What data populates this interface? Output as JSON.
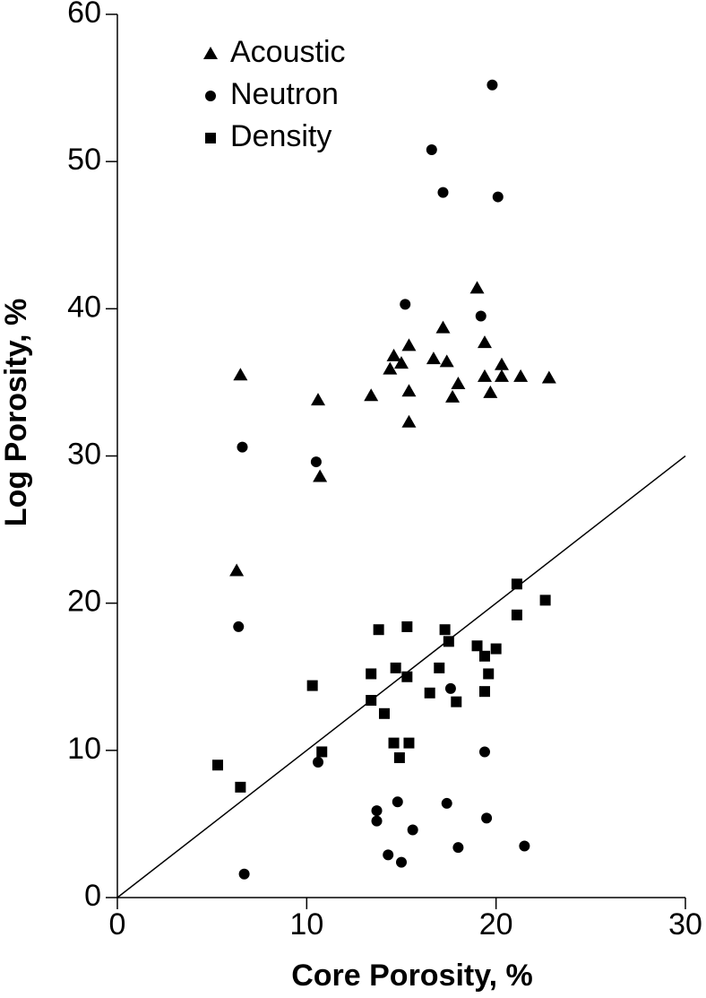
{
  "chart_data": {
    "type": "scatter",
    "x_label": "Core Porosity, %",
    "y_label": "Log Porosity, %",
    "xlim": [
      0,
      30
    ],
    "xticks": [
      0,
      10,
      20,
      30
    ],
    "ylim": [
      0,
      60
    ],
    "yticks": [
      0,
      10,
      20,
      30,
      40,
      50,
      60
    ],
    "grid": false,
    "legend_position": "upper-left",
    "series": [
      {
        "name": "Acoustic",
        "marker": "triangle",
        "color": "#000000",
        "x": [
          6.5,
          10.6,
          10.7,
          6.3,
          13.4,
          14.6,
          15.0,
          14.4,
          15.4,
          15.4,
          15.4,
          16.7,
          17.2,
          17.4,
          18.0,
          17.7,
          19.0,
          19.4,
          19.4,
          19.7,
          20.3,
          20.3,
          21.3,
          22.8
        ],
        "y": [
          35.5,
          33.8,
          28.6,
          22.2,
          34.1,
          36.8,
          36.3,
          35.9,
          37.5,
          34.4,
          32.3,
          36.6,
          38.7,
          36.4,
          34.9,
          34.0,
          41.4,
          37.7,
          35.4,
          34.3,
          36.2,
          35.4,
          35.4,
          35.3
        ]
      },
      {
        "name": "Neutron",
        "marker": "circle",
        "color": "#000000",
        "x": [
          19.8,
          16.6,
          17.2,
          20.1,
          15.2,
          19.2,
          6.6,
          10.5,
          6.4,
          17.6,
          10.6,
          19.4,
          6.7,
          13.7,
          13.7,
          14.8,
          15.6,
          17.4,
          19.5,
          14.3,
          15.0,
          18.0,
          21.5
        ],
        "y": [
          55.2,
          50.8,
          47.9,
          47.6,
          40.3,
          39.5,
          30.6,
          29.6,
          18.4,
          14.2,
          9.2,
          9.9,
          1.6,
          5.9,
          5.2,
          6.5,
          4.6,
          6.4,
          5.4,
          2.9,
          2.4,
          3.4,
          3.5
        ]
      },
      {
        "name": "Density",
        "marker": "square",
        "color": "#000000",
        "x": [
          5.3,
          6.5,
          10.3,
          10.8,
          13.8,
          15.3,
          17.3,
          17.5,
          13.4,
          14.7,
          15.3,
          17.0,
          13.4,
          14.1,
          16.5,
          17.9,
          14.6,
          15.4,
          14.9,
          19.0,
          19.4,
          20.0,
          19.6,
          19.4,
          21.1,
          21.1,
          22.6
        ],
        "y": [
          9.0,
          7.5,
          14.4,
          9.9,
          18.2,
          18.4,
          18.2,
          17.4,
          15.2,
          15.6,
          15.0,
          15.6,
          13.4,
          12.5,
          13.9,
          13.3,
          10.5,
          10.5,
          9.5,
          17.1,
          16.4,
          16.9,
          15.2,
          14.0,
          21.3,
          19.2,
          20.2
        ]
      }
    ],
    "lines": [
      {
        "x": [
          0,
          30
        ],
        "y": [
          0,
          30
        ],
        "color": "#000000"
      }
    ]
  }
}
